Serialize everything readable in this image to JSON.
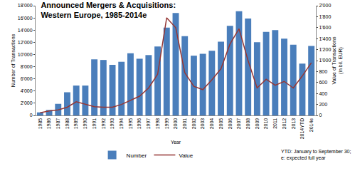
{
  "chart_data": {
    "type": "bar",
    "title": "Announced Mergers & Acquisitions:\nWestern Europe, 1985-2014e",
    "xlabel": "Year",
    "ylabel": "Number of Transactions",
    "y2label": "Value of Transactions\n(in bil. EUR)",
    "categories": [
      "1985",
      "1986",
      "1987",
      "1988",
      "1989",
      "1990",
      "1991",
      "1992",
      "1993",
      "1994",
      "1995",
      "1996",
      "1997",
      "1998",
      "1999",
      "2000",
      "2001",
      "2002",
      "2003",
      "2004",
      "2005",
      "2006",
      "2007",
      "2008",
      "2009",
      "2010",
      "2011",
      "2012",
      "2013",
      "2014YTD",
      "2014e"
    ],
    "series": [
      {
        "name": "Number",
        "type": "bar",
        "color": "#4a7ebb",
        "values": [
          500,
          900,
          1900,
          3800,
          4900,
          4900,
          9200,
          9100,
          8300,
          8800,
          10200,
          9300,
          9900,
          11300,
          14400,
          16800,
          13000,
          9800,
          10100,
          10600,
          12100,
          14700,
          17100,
          15900,
          12000,
          13700,
          14000,
          12600,
          11600,
          8500,
          11400
        ]
      },
      {
        "name": "Value",
        "type": "line",
        "axis": "y2",
        "color": "#953735",
        "values": [
          50,
          80,
          100,
          150,
          250,
          200,
          160,
          150,
          150,
          200,
          280,
          350,
          500,
          750,
          1780,
          1600,
          780,
          530,
          470,
          650,
          850,
          1300,
          1580,
          1000,
          500,
          660,
          550,
          620,
          500,
          720,
          960
        ]
      }
    ],
    "ylim": [
      0,
      18000
    ],
    "yticks": [
      0,
      {
        "value": 2000,
        "label": "2'000"
      },
      {
        "value": 4000,
        "label": "4'000"
      },
      {
        "value": 6000,
        "label": "6'000"
      },
      {
        "value": 8000,
        "label": "8'000"
      },
      {
        "value": 10000,
        "label": "10'000"
      },
      {
        "value": 12000,
        "label": "12'000"
      },
      {
        "value": 14000,
        "label": "14'000"
      },
      {
        "value": 16000,
        "label": "16'000"
      },
      {
        "value": 18000,
        "label": "18'000"
      }
    ],
    "y2lim": [
      0,
      2000
    ],
    "y2ticks": [
      0,
      200,
      400,
      600,
      800,
      {
        "value": 1000,
        "label": "1'000"
      },
      {
        "value": 1200,
        "label": "1'200"
      },
      {
        "value": 1400,
        "label": "1'400"
      },
      {
        "value": 1600,
        "label": "1'600"
      },
      {
        "value": 1800,
        "label": "1'800"
      },
      {
        "value": 2000,
        "label": "2'000"
      }
    ],
    "grid": false,
    "legend": "bottom",
    "annotations": [
      "YTD: January to September 30;\ne: expected full year"
    ]
  }
}
